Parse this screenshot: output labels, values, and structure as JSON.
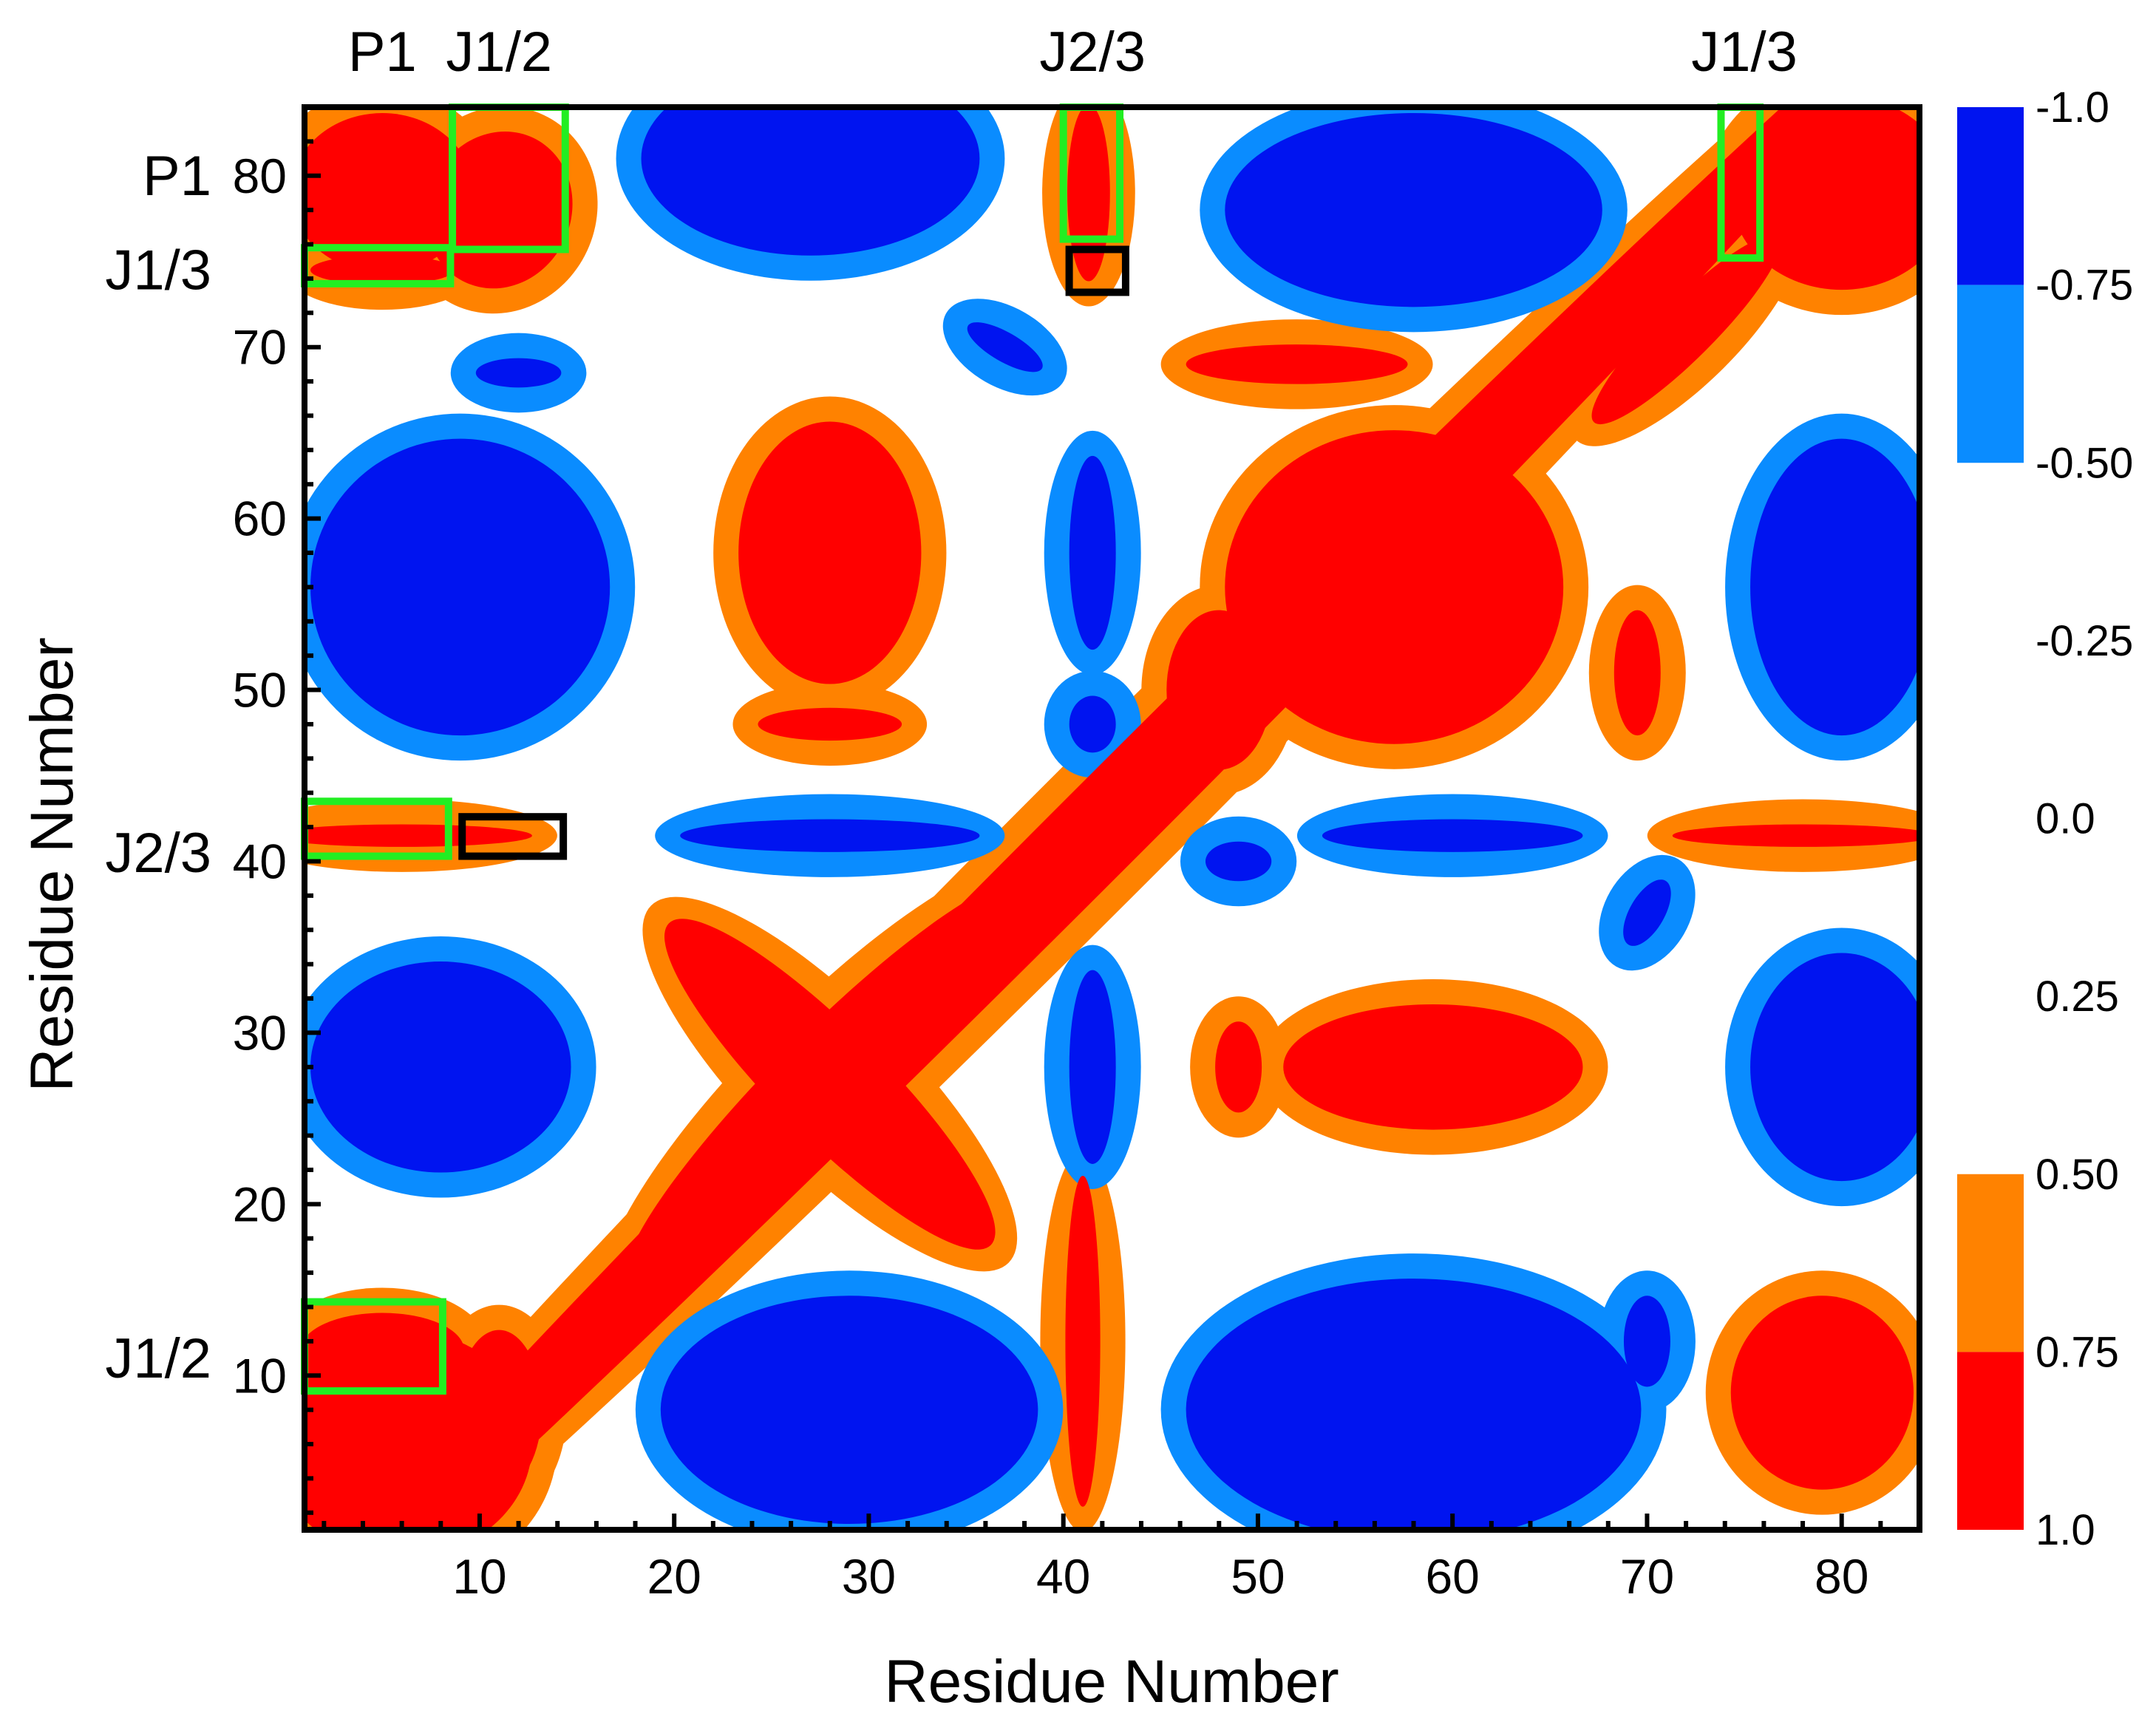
{
  "chart_data": {
    "type": "heatmap",
    "subtype": "contour",
    "xlabel": "Residue Number",
    "ylabel": "Residue Number",
    "xlim": [
      1,
      84
    ],
    "ylim": [
      1,
      84
    ],
    "x_ticks": [
      10,
      20,
      30,
      40,
      50,
      60,
      70,
      80
    ],
    "y_ticks": [
      10,
      20,
      30,
      40,
      50,
      60,
      70,
      80
    ],
    "x_tick_labels": [
      "10",
      "20",
      "30",
      "40",
      "50",
      "60",
      "70",
      "80"
    ],
    "y_tick_labels": [
      "10",
      "20",
      "30",
      "40",
      "50",
      "60",
      "70",
      "80"
    ],
    "colorbar": {
      "tick_labels": [
        "-1.0",
        "-0.75",
        "-0.50",
        "-0.25",
        "0.0",
        "0.25",
        "0.50",
        "0.75",
        "1.0"
      ],
      "bands": [
        {
          "from": -1.0,
          "to": -0.75,
          "color": "#0014f0"
        },
        {
          "from": -0.75,
          "to": -0.5,
          "color": "#0a8cff"
        },
        {
          "from": 0.5,
          "to": 0.75,
          "color": "#ff8200"
        },
        {
          "from": 0.75,
          "to": 1.0,
          "color": "#ff0000"
        }
      ],
      "neutral_color": "#ffffff"
    },
    "top_labels": [
      {
        "text": "P1",
        "at": 5
      },
      {
        "text": "J1/2",
        "at": 11
      },
      {
        "text": "J2/3",
        "at": 41.5
      },
      {
        "text": "J1/3",
        "at": 75
      }
    ],
    "left_labels": [
      {
        "text": "P1",
        "at": 80
      },
      {
        "text": "J1/3",
        "at": 74.5
      },
      {
        "text": "J2/3",
        "at": 40.5
      },
      {
        "text": "J1/2",
        "at": 11
      }
    ],
    "highlight_boxes": [
      {
        "color": "#22ee22",
        "x": [
          1,
          8.5
        ],
        "y": [
          73.7,
          75.8
        ]
      },
      {
        "color": "#22ee22",
        "x": [
          8.6,
          14.4
        ],
        "y": [
          75.7,
          84
        ]
      },
      {
        "color": "#22ee22",
        "x": [
          40,
          42.9
        ],
        "y": [
          76.3,
          84
        ]
      },
      {
        "color": "#22ee22",
        "x": [
          73.8,
          75.8
        ],
        "y": [
          75.2,
          84
        ]
      },
      {
        "color": "#22ee22",
        "x": [
          1,
          8.4
        ],
        "y": [
          40.3,
          43.5
        ]
      },
      {
        "color": "#22ee22",
        "x": [
          1,
          8.1
        ],
        "y": [
          9.1,
          14.3
        ]
      },
      {
        "color": "#000000",
        "x": [
          40.3,
          43.2
        ],
        "y": [
          73.2,
          75.7
        ]
      },
      {
        "color": "#000000",
        "x": [
          9.1,
          14.3
        ],
        "y": [
          40.3,
          42.6
        ]
      }
    ],
    "regions": [
      {
        "id": "pos-diag",
        "sign": "pos",
        "cx": 42,
        "cy": 42,
        "rx": 66,
        "ry": 3,
        "rot": 45
      },
      {
        "id": "pos-p1-corner",
        "sign": "pos",
        "cx": 5,
        "cy": 79,
        "rx": 5,
        "ry": 5,
        "rot": 0
      },
      {
        "id": "pos-j12-p1",
        "sign": "pos",
        "cx": 11,
        "cy": 78,
        "rx": 4,
        "ry": 5,
        "rot": -25
      },
      {
        "id": "pos-j13-x",
        "sign": "pos",
        "cx": 5,
        "cy": 74.5,
        "rx": 4,
        "ry": 1.2,
        "rot": 0
      },
      {
        "id": "pos-bl-corner",
        "sign": "pos",
        "cx": 6,
        "cy": 6,
        "rx": 7,
        "ry": 7,
        "rot": 0
      },
      {
        "id": "pos-j12-bl",
        "sign": "pos",
        "cx": 5,
        "cy": 11.5,
        "rx": 4.5,
        "ry": 2.5,
        "rot": 0
      },
      {
        "id": "pos-j12-diag",
        "sign": "pos",
        "cx": 11,
        "cy": 8,
        "rx": 2.5,
        "ry": 5,
        "rot": 0
      },
      {
        "id": "pos-x-1",
        "sign": "pos",
        "cx": 28,
        "cy": 27,
        "rx": 15,
        "ry": 3.5,
        "rot": 45
      },
      {
        "id": "pos-x-2",
        "sign": "pos",
        "cx": 28,
        "cy": 27,
        "rx": 12,
        "ry": 3.5,
        "rot": -45
      },
      {
        "id": "pos-j23-strip",
        "sign": "pos",
        "cx": 41,
        "cy": 12,
        "rx": 1.2,
        "ry": 10,
        "rot": 0
      },
      {
        "id": "pos-j23-top",
        "sign": "pos",
        "cx": 41.3,
        "cy": 79,
        "rx": 1.4,
        "ry": 5.5,
        "rot": 0
      },
      {
        "id": "pos-j23-left",
        "sign": "pos",
        "cx": 6,
        "cy": 41.5,
        "rx": 7,
        "ry": 1,
        "rot": 0
      },
      {
        "id": "pos-j23-right",
        "sign": "pos",
        "cx": 78,
        "cy": 41.5,
        "rx": 7,
        "ry": 1,
        "rot": 0
      },
      {
        "id": "pos-bigsq",
        "sign": "pos",
        "cx": 57,
        "cy": 56,
        "rx": 9,
        "ry": 9.5,
        "rot": 0
      },
      {
        "id": "pos-bigsq-tail",
        "sign": "pos",
        "cx": 48,
        "cy": 50,
        "rx": 3,
        "ry": 5,
        "rot": 0
      },
      {
        "id": "pos-upper-left",
        "sign": "pos",
        "cx": 28,
        "cy": 58,
        "rx": 5,
        "ry": 8,
        "rot": 0
      },
      {
        "id": "pos-blob-48",
        "sign": "pos",
        "cx": 28,
        "cy": 48,
        "rx": 4,
        "ry": 1.3,
        "rot": 0
      },
      {
        "id": "pos-right-mid",
        "sign": "pos",
        "cx": 59,
        "cy": 28,
        "rx": 8,
        "ry": 4,
        "rot": 0
      },
      {
        "id": "pos-right-mid2",
        "sign": "pos",
        "cx": 49,
        "cy": 28,
        "rx": 1.5,
        "ry": 3,
        "rot": 0
      },
      {
        "id": "pos-tr-corner",
        "sign": "pos",
        "cx": 80,
        "cy": 79,
        "rx": 6,
        "ry": 6,
        "rot": 0
      },
      {
        "id": "pos-tr-arm",
        "sign": "pos",
        "cx": 72,
        "cy": 71,
        "rx": 7,
        "ry": 2,
        "rot": 45
      },
      {
        "id": "pos-br-corner",
        "sign": "pos",
        "cx": 79,
        "cy": 9,
        "rx": 5,
        "ry": 6,
        "rot": 0
      },
      {
        "id": "pos-r-strip",
        "sign": "pos",
        "cx": 69.5,
        "cy": 51,
        "rx": 1.5,
        "ry": 4,
        "rot": 0
      },
      {
        "id": "pos-h-strip",
        "sign": "pos",
        "cx": 52,
        "cy": 69,
        "rx": 6,
        "ry": 1.5,
        "rot": 0
      },
      {
        "id": "neg-tl-a",
        "sign": "neg",
        "cx": 9,
        "cy": 56,
        "rx": 8,
        "ry": 9,
        "rot": 0
      },
      {
        "id": "neg-tl-b",
        "sign": "neg",
        "cx": 27,
        "cy": 81,
        "rx": 9,
        "ry": 6,
        "rot": 0
      },
      {
        "id": "neg-bl-a",
        "sign": "neg",
        "cx": 8,
        "cy": 28,
        "rx": 7,
        "ry": 6.5,
        "rot": 0
      },
      {
        "id": "neg-bottom-a",
        "sign": "neg",
        "cx": 29,
        "cy": 8,
        "rx": 10,
        "ry": 7,
        "rot": 0
      },
      {
        "id": "neg-bottom-b",
        "sign": "neg",
        "cx": 58,
        "cy": 8,
        "rx": 12,
        "ry": 8,
        "rot": 0
      },
      {
        "id": "neg-top-b",
        "sign": "neg",
        "cx": 58,
        "cy": 78,
        "rx": 10,
        "ry": 6,
        "rot": 0
      },
      {
        "id": "neg-tr-a",
        "sign": "neg",
        "cx": 80,
        "cy": 56,
        "rx": 5,
        "ry": 9,
        "rot": 0
      },
      {
        "id": "neg-br-a",
        "sign": "neg",
        "cx": 80,
        "cy": 28,
        "rx": 5,
        "ry": 7,
        "rot": 0
      },
      {
        "id": "neg-j23-h1",
        "sign": "neg",
        "cx": 28,
        "cy": 41.5,
        "rx": 8,
        "ry": 1.3,
        "rot": 0
      },
      {
        "id": "neg-j23-h2",
        "sign": "neg",
        "cx": 60,
        "cy": 41.5,
        "rx": 7,
        "ry": 1.3,
        "rot": 0
      },
      {
        "id": "neg-j23-v1",
        "sign": "neg",
        "cx": 41.5,
        "cy": 58,
        "rx": 1.5,
        "ry": 6,
        "rot": 0
      },
      {
        "id": "neg-j23-v2",
        "sign": "neg",
        "cx": 41.5,
        "cy": 28,
        "rx": 1.5,
        "ry": 6,
        "rot": 0
      },
      {
        "id": "neg-small-1",
        "sign": "neg",
        "cx": 12,
        "cy": 68.5,
        "rx": 2.5,
        "ry": 1.2,
        "rot": 0
      },
      {
        "id": "neg-small-2",
        "sign": "neg",
        "cx": 37,
        "cy": 70,
        "rx": 2.5,
        "ry": 1.2,
        "rot": -30
      },
      {
        "id": "neg-small-3",
        "sign": "neg",
        "cx": 70,
        "cy": 37,
        "rx": 1.2,
        "ry": 2.5,
        "rot": -30
      },
      {
        "id": "neg-small-4",
        "sign": "neg",
        "cx": 70,
        "cy": 12,
        "rx": 1.5,
        "ry": 3,
        "rot": 0
      },
      {
        "id": "neg-small-5",
        "sign": "neg",
        "cx": 49,
        "cy": 40,
        "rx": 2,
        "ry": 1.5,
        "rot": 0
      },
      {
        "id": "neg-small-6",
        "sign": "neg",
        "cx": 41.5,
        "cy": 48,
        "rx": 1.5,
        "ry": 2,
        "rot": 0
      }
    ]
  }
}
